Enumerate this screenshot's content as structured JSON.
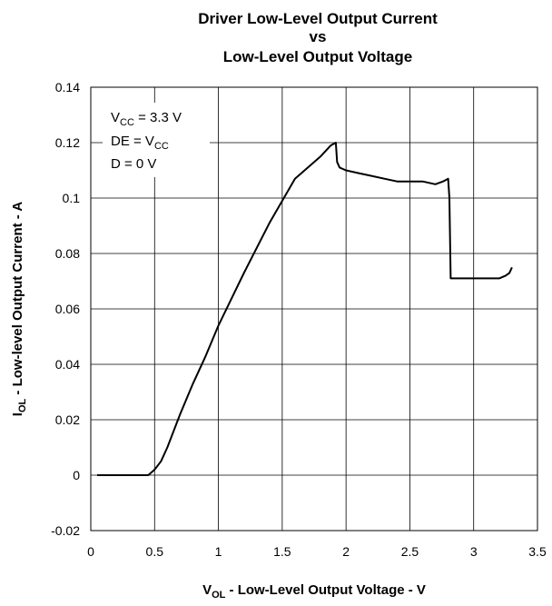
{
  "chart_data": {
    "type": "line",
    "title_lines": [
      "Driver Low-Level Output Current",
      "vs",
      "Low-Level Output Voltage"
    ],
    "xlabel": {
      "main": "V",
      "sub": "OL",
      "rest": " - Low-Level Output Voltage - V"
    },
    "ylabel": {
      "main": "I",
      "sub": "OL",
      "rest": " - Low-level Output Current - A"
    },
    "xlim": [
      0,
      3.5
    ],
    "ylim": [
      -0.02,
      0.14
    ],
    "x_ticks": [
      0,
      0.5,
      1,
      1.5,
      2,
      2.5,
      3,
      3.5
    ],
    "x_tick_labels": [
      "0",
      "0.5",
      "1",
      "1.5",
      "2",
      "2.5",
      "3",
      "3.5"
    ],
    "y_ticks": [
      -0.02,
      0,
      0.02,
      0.04,
      0.06,
      0.08,
      0.1,
      0.12,
      0.14
    ],
    "y_tick_labels": [
      "-0.02",
      "0",
      "0.02",
      "0.04",
      "0.06",
      "0.08",
      "0.1",
      "0.12",
      "0.14"
    ],
    "grid": true,
    "legend": "none",
    "line_color": "#000000",
    "annotation": {
      "line1": {
        "main": "V",
        "sub": "CC",
        "rest": " = 3.3 V"
      },
      "line2": {
        "pre": "DE = V",
        "sub": "CC"
      },
      "line3": "D = 0 V"
    },
    "series": [
      {
        "x": [
          0.05,
          0.45,
          0.5,
          0.55,
          0.6,
          0.7,
          0.8,
          0.9,
          1.0,
          1.2,
          1.4,
          1.6,
          1.8,
          1.88,
          1.92,
          1.93,
          1.95,
          2.0,
          2.1,
          2.2,
          2.3,
          2.4,
          2.5,
          2.6,
          2.7,
          2.76,
          2.8,
          2.81,
          2.82,
          2.85,
          2.9,
          3.0,
          3.1,
          3.2,
          3.25,
          3.28,
          3.3
        ],
        "y": [
          0.0,
          0.0,
          0.002,
          0.005,
          0.01,
          0.022,
          0.033,
          0.043,
          0.054,
          0.073,
          0.091,
          0.107,
          0.115,
          0.119,
          0.12,
          0.113,
          0.111,
          0.11,
          0.109,
          0.108,
          0.107,
          0.106,
          0.106,
          0.106,
          0.105,
          0.106,
          0.107,
          0.1,
          0.071,
          0.071,
          0.071,
          0.071,
          0.071,
          0.071,
          0.072,
          0.073,
          0.075
        ]
      }
    ]
  }
}
